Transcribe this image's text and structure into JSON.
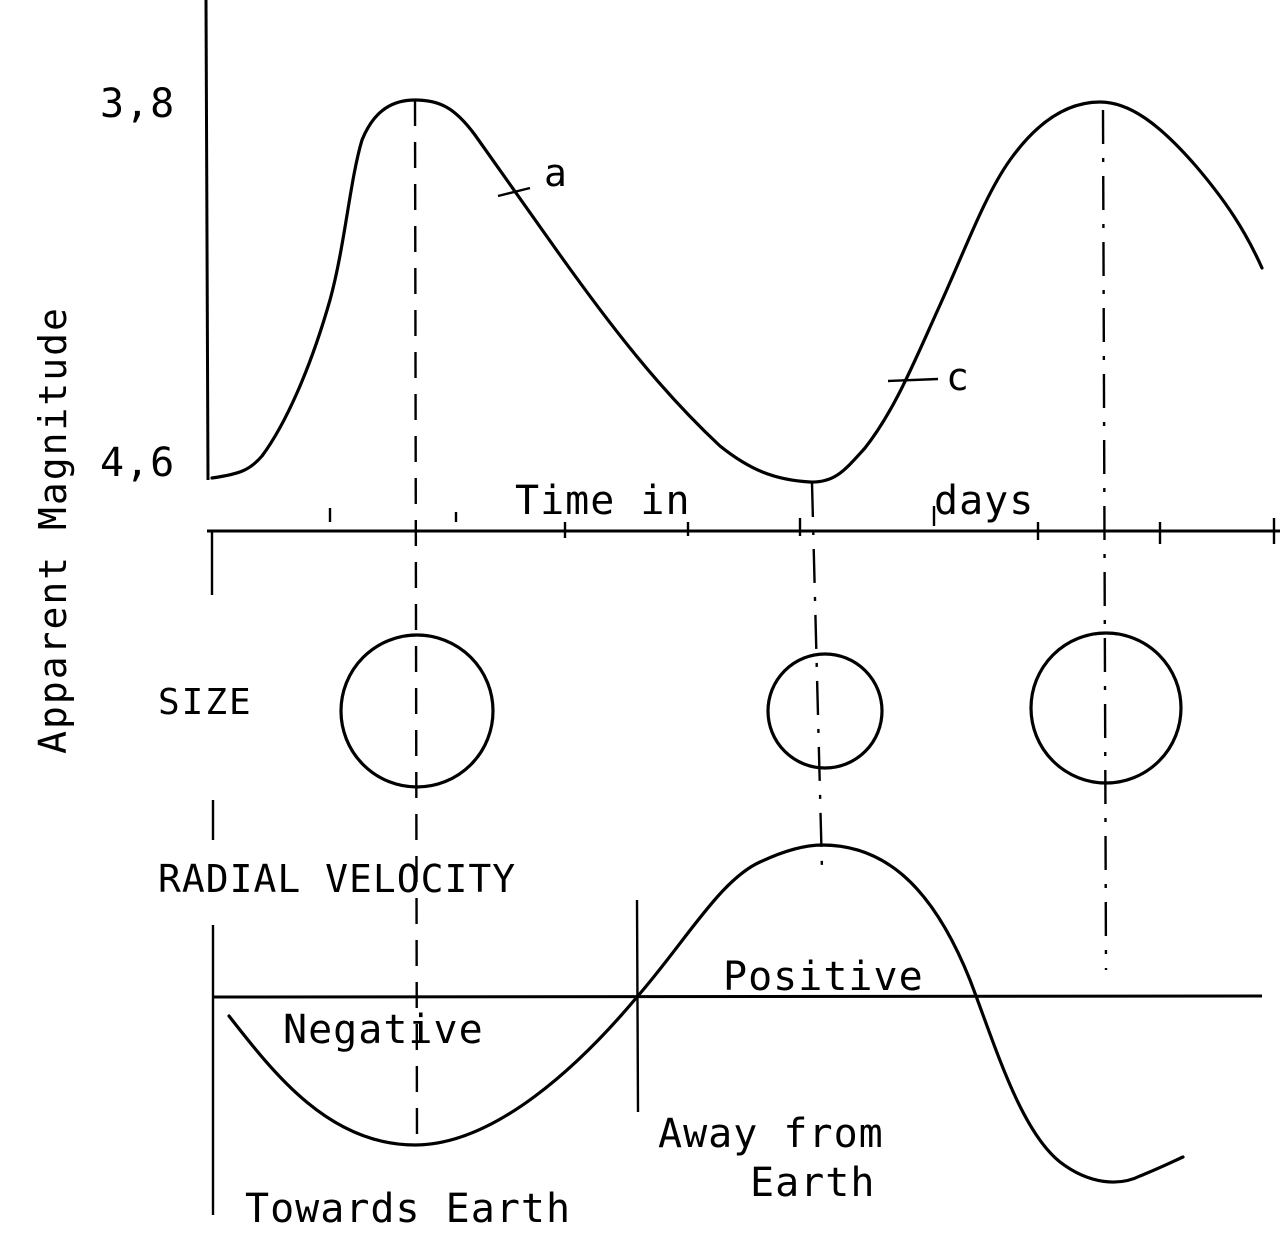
{
  "y_axis": {
    "label": "Apparent Magnitude",
    "tick_top": "3,8",
    "tick_bottom": "4,6"
  },
  "x_axis": {
    "label_part1": "Time in",
    "label_part2": "days"
  },
  "points": {
    "a": "a",
    "c": "c"
  },
  "size_section": {
    "label": "SIZE"
  },
  "velocity_section": {
    "label": "RADIAL VELOCITY",
    "positive": "Positive",
    "negative": "Negative",
    "away_line1": "Away from",
    "away_line2": "Earth",
    "towards": "Towards Earth"
  },
  "colors": {
    "ink": "#000000",
    "paper": "#ffffff"
  }
}
